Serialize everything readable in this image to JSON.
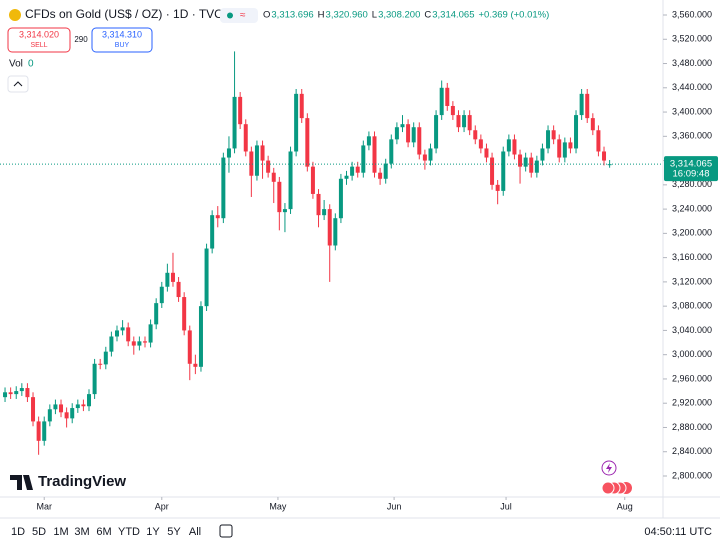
{
  "chart_data": {
    "type": "candlestick",
    "title": "CFDs on Gold (US$ / OZ) · 1D · TVC",
    "ohlc_legend": [
      {
        "label": "O",
        "value": "3,313.696"
      },
      {
        "label": "H",
        "value": "3,320.960"
      },
      {
        "label": "L",
        "value": "3,308.200"
      },
      {
        "label": "C",
        "value": "3,314.065"
      }
    ],
    "change": "+0.369 (+0.01%)",
    "sell": {
      "price": "3,314.020",
      "label": "SELL"
    },
    "spread": "290",
    "buy": {
      "price": "3,314.310",
      "label": "BUY"
    },
    "volume": {
      "label": "Vol",
      "value": "0"
    },
    "up_color": "#089981",
    "down_color": "#f23645",
    "last_price": {
      "value": 3314.065,
      "label": "3,314.065",
      "countdown": "16:09:48"
    },
    "ylim": [
      2800,
      3560
    ],
    "yticks": [
      {
        "value": 2800,
        "label": "2,800.000"
      },
      {
        "value": 2840,
        "label": "2,840.000"
      },
      {
        "value": 2880,
        "label": "2,880.000"
      },
      {
        "value": 2920,
        "label": "2,920.000"
      },
      {
        "value": 2960,
        "label": "2,960.000"
      },
      {
        "value": 3000,
        "label": "3,000.000"
      },
      {
        "value": 3040,
        "label": "3,040.000"
      },
      {
        "value": 3080,
        "label": "3,080.000"
      },
      {
        "value": 3120,
        "label": "3,120.000"
      },
      {
        "value": 3160,
        "label": "3,160.000"
      },
      {
        "value": 3200,
        "label": "3,200.000"
      },
      {
        "value": 3240,
        "label": "3,240.000"
      },
      {
        "value": 3280,
        "label": "3,280.000"
      },
      {
        "value": 3320,
        "label": "3,320.000"
      },
      {
        "value": 3360,
        "label": "3,360.000"
      },
      {
        "value": 3400,
        "label": "3,400.000"
      },
      {
        "value": 3440,
        "label": "3,440.000"
      },
      {
        "value": 3480,
        "label": "3,480.000"
      },
      {
        "value": 3520,
        "label": "3,520.000"
      },
      {
        "value": 3560,
        "label": "3,560.000"
      }
    ],
    "xlim": [
      -0.9,
      117
    ],
    "xticks": [
      {
        "value": 7,
        "label": "Mar"
      },
      {
        "value": 28,
        "label": "Apr"
      },
      {
        "value": 48.75,
        "label": "May"
      },
      {
        "value": 69.5,
        "label": "Jun"
      },
      {
        "value": 89.5,
        "label": "Jul"
      },
      {
        "value": 110.7,
        "label": "Aug"
      }
    ],
    "ohlc": [
      [
        2930,
        2946,
        2922,
        2938
      ],
      [
        2938,
        2946,
        2927,
        2935
      ],
      [
        2935,
        2948,
        2927,
        2940
      ],
      [
        2940,
        2953,
        2932,
        2945
      ],
      [
        2945,
        2953,
        2922,
        2930
      ],
      [
        2930,
        2938,
        2882,
        2890
      ],
      [
        2890,
        2898,
        2835,
        2858
      ],
      [
        2858,
        2898,
        2850,
        2890
      ],
      [
        2890,
        2918,
        2882,
        2910
      ],
      [
        2910,
        2926,
        2902,
        2918
      ],
      [
        2918,
        2926,
        2897,
        2905
      ],
      [
        2905,
        2913,
        2880,
        2895
      ],
      [
        2895,
        2920,
        2887,
        2912
      ],
      [
        2912,
        2926,
        2904,
        2918
      ],
      [
        2918,
        2926,
        2907,
        2915
      ],
      [
        2915,
        2943,
        2907,
        2935
      ],
      [
        2935,
        2993,
        2927,
        2985
      ],
      [
        2985,
        2993,
        2976,
        2984
      ],
      [
        2984,
        3013,
        2976,
        3005
      ],
      [
        3005,
        3038,
        2997,
        3030
      ],
      [
        3030,
        3048,
        3022,
        3040
      ],
      [
        3040,
        3057,
        3032,
        3045
      ],
      [
        3045,
        3053,
        3014,
        3022
      ],
      [
        3022,
        3030,
        3000,
        3015
      ],
      [
        3015,
        3030,
        3007,
        3022
      ],
      [
        3022,
        3030,
        3012,
        3020
      ],
      [
        3020,
        3058,
        3012,
        3050
      ],
      [
        3050,
        3093,
        3042,
        3085
      ],
      [
        3085,
        3120,
        3077,
        3112
      ],
      [
        3112,
        3150,
        3104,
        3135
      ],
      [
        3135,
        3168,
        3112,
        3120
      ],
      [
        3120,
        3128,
        3087,
        3095
      ],
      [
        3095,
        3103,
        3032,
        3040
      ],
      [
        3040,
        3048,
        2958,
        2985
      ],
      [
        2985,
        3000,
        2968,
        2980
      ],
      [
        2980,
        3088,
        2972,
        3080
      ],
      [
        3080,
        3183,
        3072,
        3175
      ],
      [
        3175,
        3238,
        3167,
        3230
      ],
      [
        3230,
        3245,
        3210,
        3225
      ],
      [
        3225,
        3333,
        3217,
        3325
      ],
      [
        3325,
        3360,
        3300,
        3340
      ],
      [
        3340,
        3500,
        3332,
        3425
      ],
      [
        3425,
        3433,
        3372,
        3380
      ],
      [
        3380,
        3388,
        3327,
        3335
      ],
      [
        3335,
        3343,
        3260,
        3295
      ],
      [
        3295,
        3353,
        3287,
        3345
      ],
      [
        3345,
        3353,
        3290,
        3320
      ],
      [
        3320,
        3328,
        3292,
        3300
      ],
      [
        3300,
        3308,
        3250,
        3285
      ],
      [
        3285,
        3293,
        3205,
        3235
      ],
      [
        3235,
        3250,
        3202,
        3240
      ],
      [
        3240,
        3343,
        3232,
        3335
      ],
      [
        3335,
        3438,
        3327,
        3430
      ],
      [
        3430,
        3438,
        3382,
        3390
      ],
      [
        3390,
        3398,
        3302,
        3310
      ],
      [
        3310,
        3318,
        3257,
        3265
      ],
      [
        3265,
        3273,
        3210,
        3230
      ],
      [
        3230,
        3255,
        3222,
        3240
      ],
      [
        3240,
        3248,
        3120,
        3180
      ],
      [
        3180,
        3233,
        3172,
        3225
      ],
      [
        3225,
        3298,
        3217,
        3290
      ],
      [
        3290,
        3303,
        3280,
        3295
      ],
      [
        3295,
        3318,
        3287,
        3310
      ],
      [
        3310,
        3318,
        3292,
        3300
      ],
      [
        3300,
        3353,
        3292,
        3345
      ],
      [
        3345,
        3368,
        3337,
        3360
      ],
      [
        3360,
        3368,
        3292,
        3300
      ],
      [
        3300,
        3308,
        3280,
        3290
      ],
      [
        3290,
        3323,
        3282,
        3315
      ],
      [
        3315,
        3363,
        3307,
        3355
      ],
      [
        3355,
        3383,
        3347,
        3375
      ],
      [
        3375,
        3395,
        3367,
        3380
      ],
      [
        3380,
        3388,
        3342,
        3350
      ],
      [
        3350,
        3383,
        3342,
        3375
      ],
      [
        3375,
        3383,
        3322,
        3330
      ],
      [
        3330,
        3338,
        3305,
        3320
      ],
      [
        3320,
        3348,
        3312,
        3340
      ],
      [
        3340,
        3403,
        3332,
        3395
      ],
      [
        3395,
        3452,
        3387,
        3440
      ],
      [
        3440,
        3448,
        3402,
        3410
      ],
      [
        3410,
        3418,
        3387,
        3395
      ],
      [
        3395,
        3403,
        3367,
        3375
      ],
      [
        3375,
        3403,
        3367,
        3395
      ],
      [
        3395,
        3403,
        3362,
        3370
      ],
      [
        3370,
        3378,
        3347,
        3355
      ],
      [
        3355,
        3363,
        3332,
        3340
      ],
      [
        3340,
        3348,
        3317,
        3325
      ],
      [
        3325,
        3333,
        3272,
        3280
      ],
      [
        3280,
        3288,
        3248,
        3270
      ],
      [
        3270,
        3343,
        3262,
        3335
      ],
      [
        3335,
        3363,
        3327,
        3355
      ],
      [
        3355,
        3363,
        3322,
        3330
      ],
      [
        3330,
        3338,
        3282,
        3310
      ],
      [
        3310,
        3333,
        3302,
        3325
      ],
      [
        3325,
        3333,
        3292,
        3300
      ],
      [
        3300,
        3328,
        3292,
        3320
      ],
      [
        3320,
        3348,
        3312,
        3340
      ],
      [
        3340,
        3378,
        3332,
        3370
      ],
      [
        3370,
        3378,
        3347,
        3355
      ],
      [
        3355,
        3363,
        3317,
        3325
      ],
      [
        3325,
        3358,
        3317,
        3350
      ],
      [
        3350,
        3358,
        3332,
        3340
      ],
      [
        3340,
        3403,
        3332,
        3395
      ],
      [
        3395,
        3438,
        3387,
        3430
      ],
      [
        3430,
        3438,
        3382,
        3390
      ],
      [
        3390,
        3398,
        3362,
        3370
      ],
      [
        3370,
        3378,
        3327,
        3335
      ],
      [
        3335,
        3343,
        3312,
        3320
      ],
      [
        3313.696,
        3320.96,
        3308.2,
        3314.065
      ]
    ],
    "branding": "TradingView",
    "ranges": [
      "1D",
      "5D",
      "1M",
      "3M",
      "6M",
      "YTD",
      "1Y",
      "5Y",
      "All"
    ],
    "clock": "04:50:11 UTC"
  }
}
